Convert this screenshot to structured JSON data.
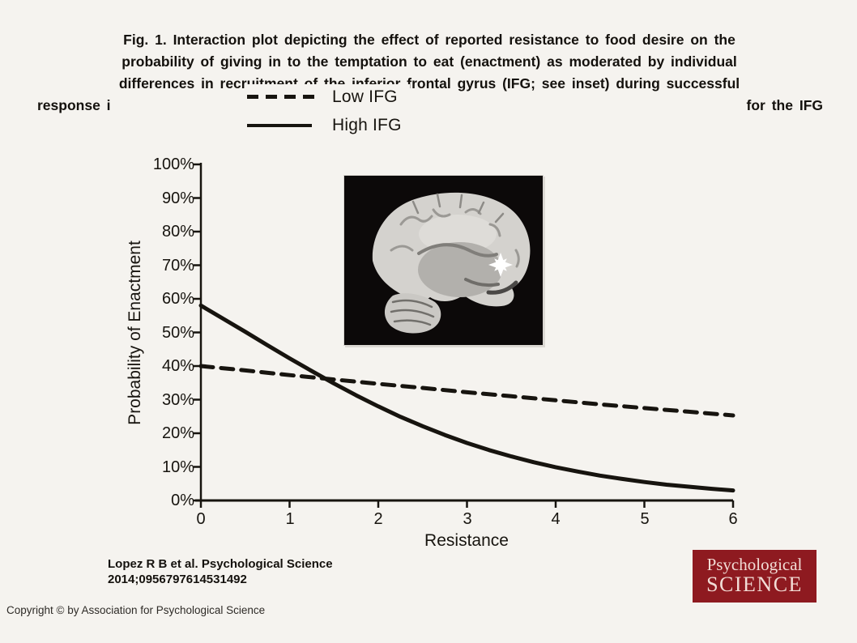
{
  "caption": {
    "line1": "Fig. 1. Interaction plot depicting the effect of reported resistance to food desire on the",
    "line2": "probability of giving in to the temptation to eat (enactment) as moderated by individual",
    "line3": "differences in recruitment of the inferior frontal gyrus (IFG; see inset) during successful",
    "line4_left": "response i",
    "line4_right": "for the IFG"
  },
  "chart_data": {
    "type": "line",
    "title": "",
    "xlabel": "Resistance",
    "ylabel": "Probability of Enactment",
    "xlim": [
      0,
      6
    ],
    "ylim_percent": [
      0,
      100
    ],
    "grid": false,
    "legend_position": "top-center",
    "xticks": [
      "0",
      "1",
      "2",
      "3",
      "4",
      "5",
      "6"
    ],
    "yticks": [
      "100%",
      "90%",
      "80%",
      "70%",
      "60%",
      "50%",
      "40%",
      "30%",
      "20%",
      "10%",
      "0%"
    ],
    "series": [
      {
        "name": "Low IFG",
        "line_style": "dashed",
        "x": [
          0,
          0.5,
          1,
          1.5,
          2,
          2.5,
          3,
          3.5,
          4,
          4.5,
          5,
          5.5,
          6
        ],
        "y_percent": [
          40.0,
          38.7,
          37.3,
          36.0,
          34.7,
          33.5,
          32.2,
          31.0,
          29.8,
          28.6,
          27.5,
          26.4,
          25.3
        ]
      },
      {
        "name": "High IFG",
        "line_style": "solid",
        "x": [
          0,
          0.25,
          0.5,
          0.75,
          1,
          1.25,
          1.5,
          1.75,
          2,
          2.25,
          2.5,
          2.75,
          3,
          3.25,
          3.5,
          3.75,
          4,
          4.25,
          4.5,
          4.75,
          5,
          5.25,
          5.5,
          5.75,
          6
        ],
        "y_percent": [
          58.0,
          54.1,
          50.2,
          46.2,
          42.3,
          38.5,
          34.8,
          31.3,
          28.0,
          24.9,
          22.1,
          19.5,
          17.1,
          15.0,
          13.1,
          11.4,
          9.9,
          8.6,
          7.4,
          6.4,
          5.5,
          4.7,
          4.1,
          3.5,
          3.0
        ]
      }
    ],
    "inset_icon": "sagittal-brain-mri-with-ifg-activation-highlight"
  },
  "citation": {
    "line1": "Lopez R B et al. Psychological Science",
    "line2": "2014;0956797614531492"
  },
  "logo": {
    "line1": "Psychological",
    "line2": "SCIENCE",
    "bg_color": "#8e1a20",
    "text_color": "#f2ddd6"
  },
  "footer": {
    "copyright": "Copyright © by Association for Psychological Science"
  },
  "colors": {
    "background": "#f5f3ef",
    "ink": "#17140f",
    "logo_maroon": "#8e1a20"
  }
}
